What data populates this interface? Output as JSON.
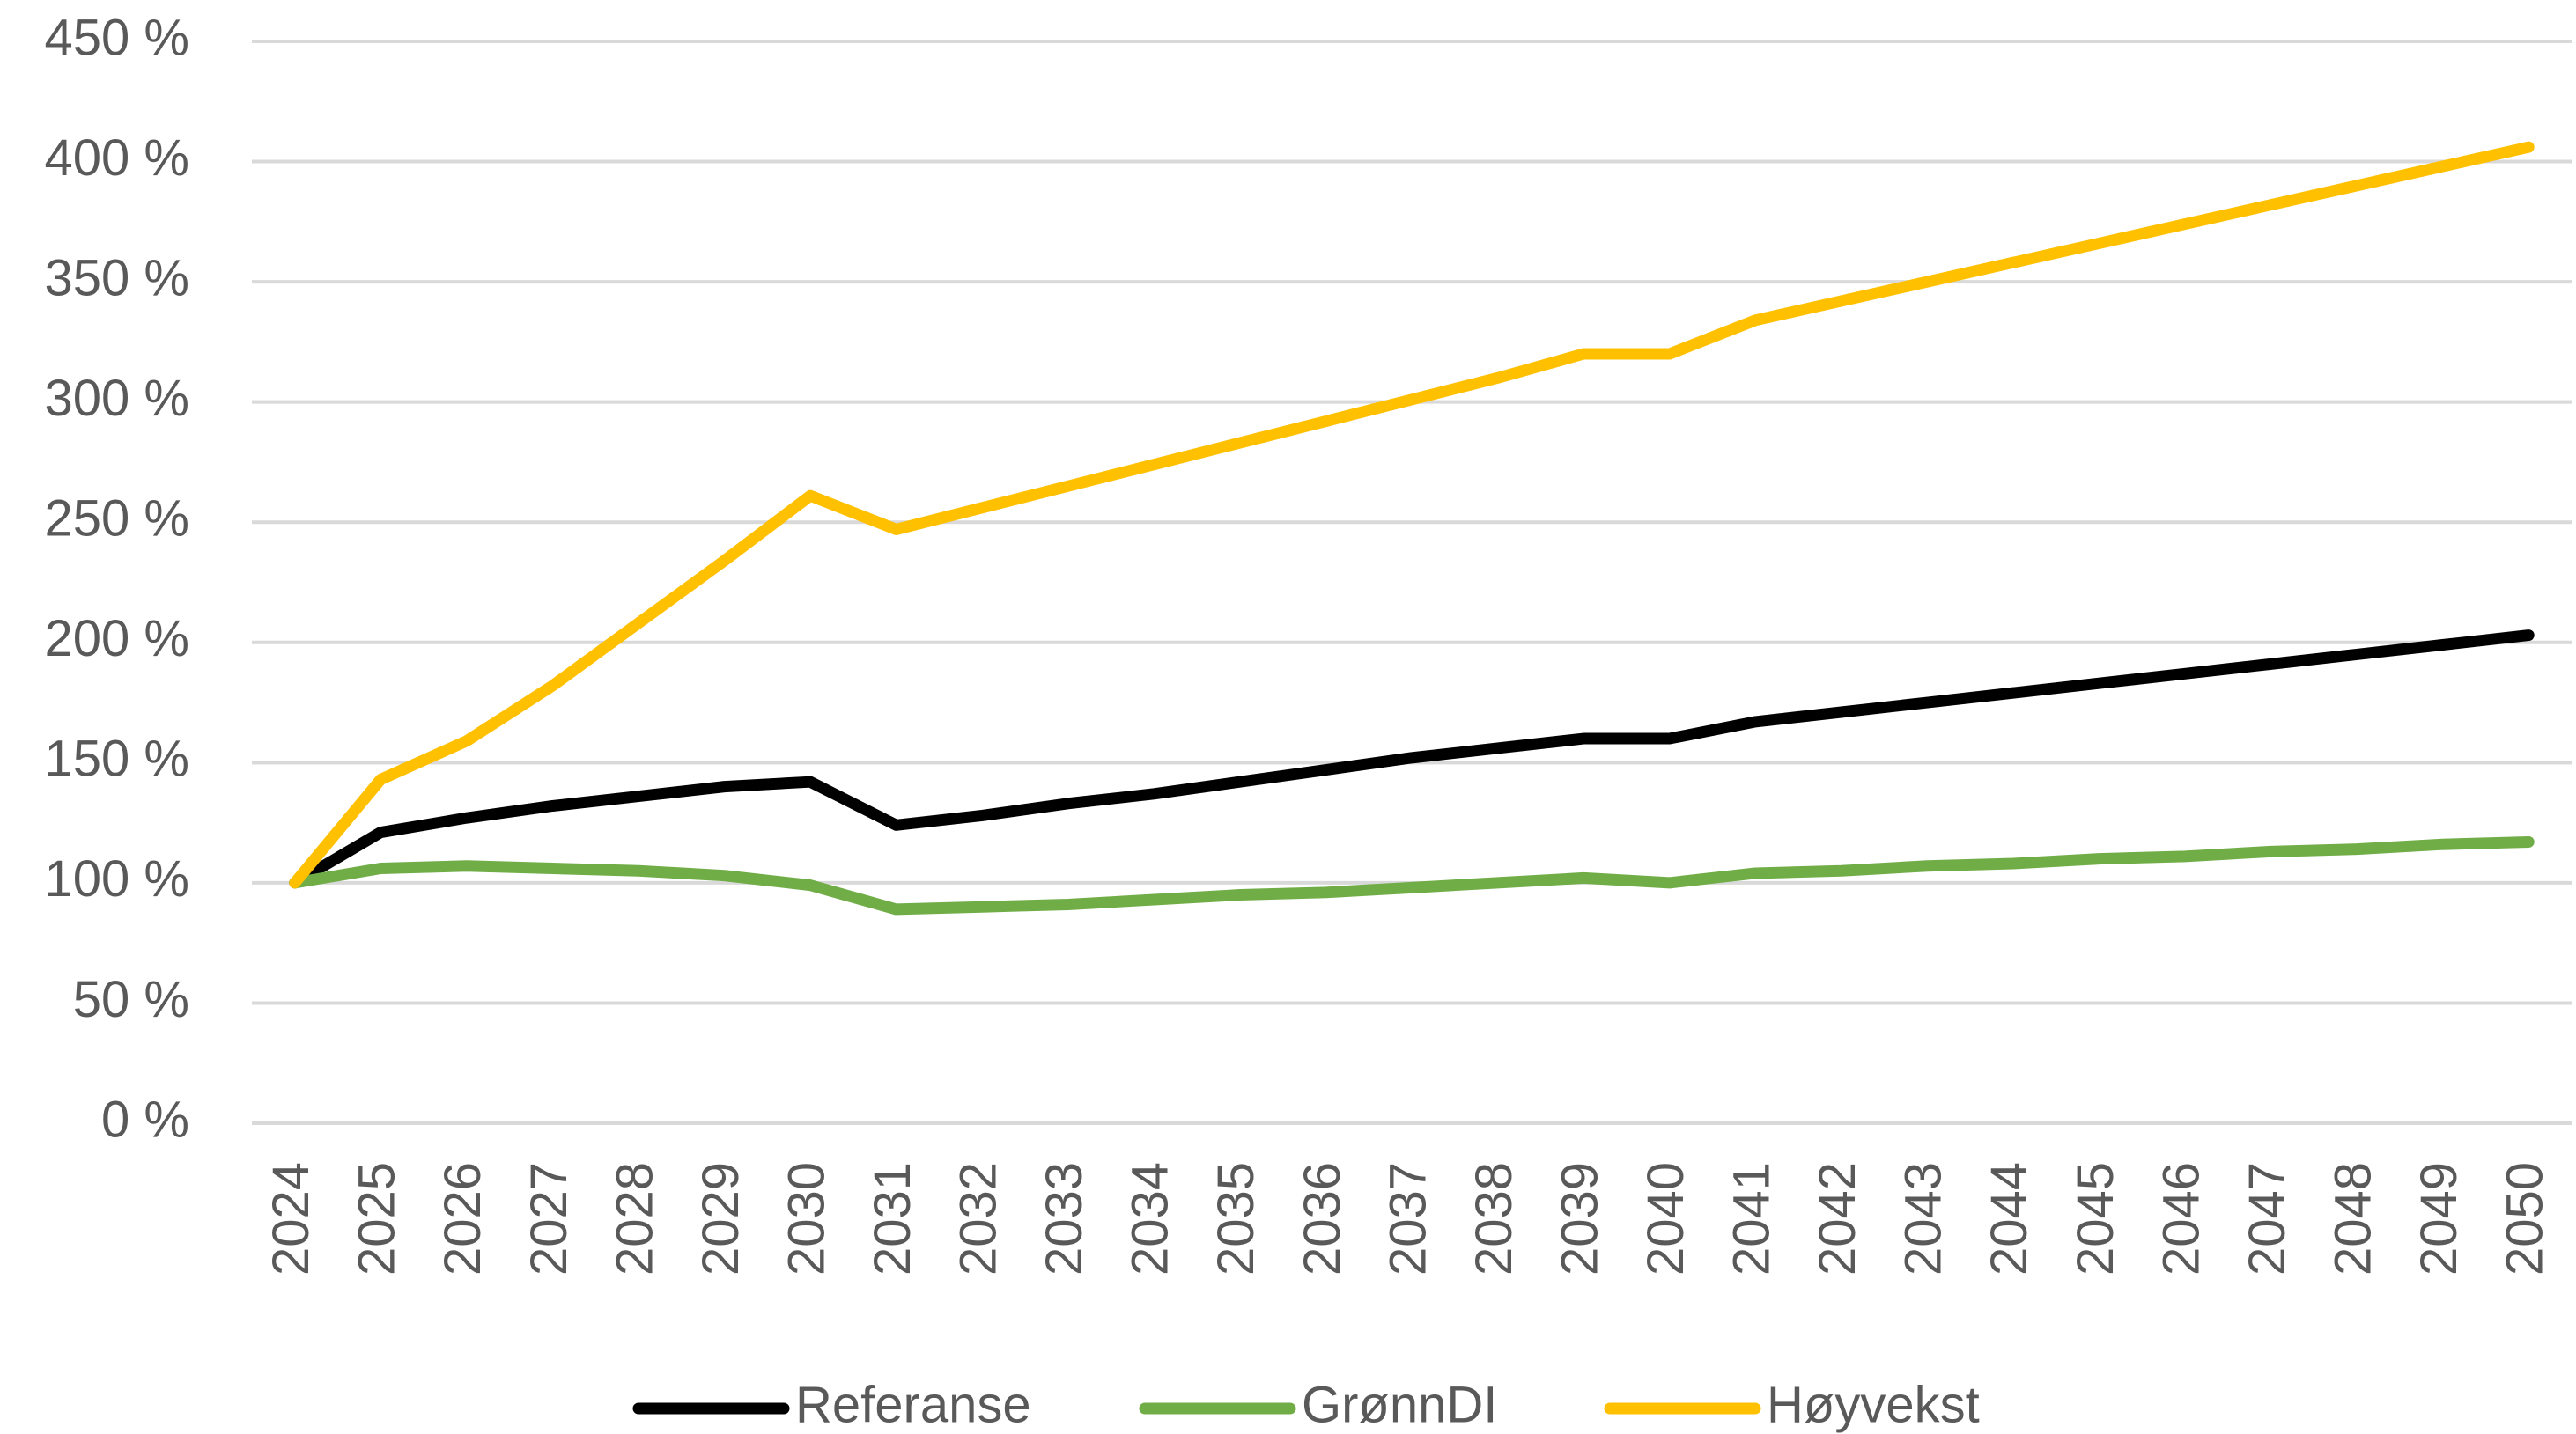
{
  "chart_data": {
    "type": "line",
    "categories": [
      "2024",
      "2025",
      "2026",
      "2027",
      "2028",
      "2029",
      "2030",
      "2031",
      "2032",
      "2033",
      "2034",
      "2035",
      "2036",
      "2037",
      "2038",
      "2039",
      "2040",
      "2041",
      "2042",
      "2043",
      "2044",
      "2045",
      "2046",
      "2047",
      "2048",
      "2049",
      "2050"
    ],
    "series": [
      {
        "name": "Referanse",
        "color": "#000000",
        "values": [
          100,
          121,
          127,
          132,
          136,
          140,
          142,
          124,
          128,
          133,
          137,
          142,
          147,
          152,
          156,
          160,
          160,
          167,
          171,
          175,
          179,
          183,
          187,
          191,
          195,
          199,
          203
        ]
      },
      {
        "name": "GrønnDI",
        "color": "#70ad47",
        "values": [
          100,
          106,
          107,
          106,
          105,
          103,
          99,
          89,
          90,
          91,
          93,
          95,
          96,
          98,
          100,
          102,
          100,
          104,
          105,
          107,
          108,
          110,
          111,
          113,
          114,
          116,
          117
        ]
      },
      {
        "name": "Høyvekst",
        "color": "#ffc000",
        "values": [
          100,
          143,
          159,
          182,
          208,
          234,
          261,
          247,
          256,
          265,
          274,
          283,
          292,
          301,
          310,
          320,
          320,
          334,
          342,
          350,
          358,
          366,
          374,
          382,
          390,
          398,
          406
        ]
      }
    ],
    "ylim": [
      0,
      450
    ],
    "yticks": [
      {
        "value": 0,
        "label": "0 %"
      },
      {
        "value": 50,
        "label": "50 %"
      },
      {
        "value": 100,
        "label": "100 %"
      },
      {
        "value": 150,
        "label": "150 %"
      },
      {
        "value": 200,
        "label": "200 %"
      },
      {
        "value": 250,
        "label": "250 %"
      },
      {
        "value": 300,
        "label": "300 %"
      },
      {
        "value": 350,
        "label": "350 %"
      },
      {
        "value": 400,
        "label": "400 %"
      },
      {
        "value": 450,
        "label": "450 %"
      }
    ],
    "grid": true,
    "legend": "bottom"
  }
}
